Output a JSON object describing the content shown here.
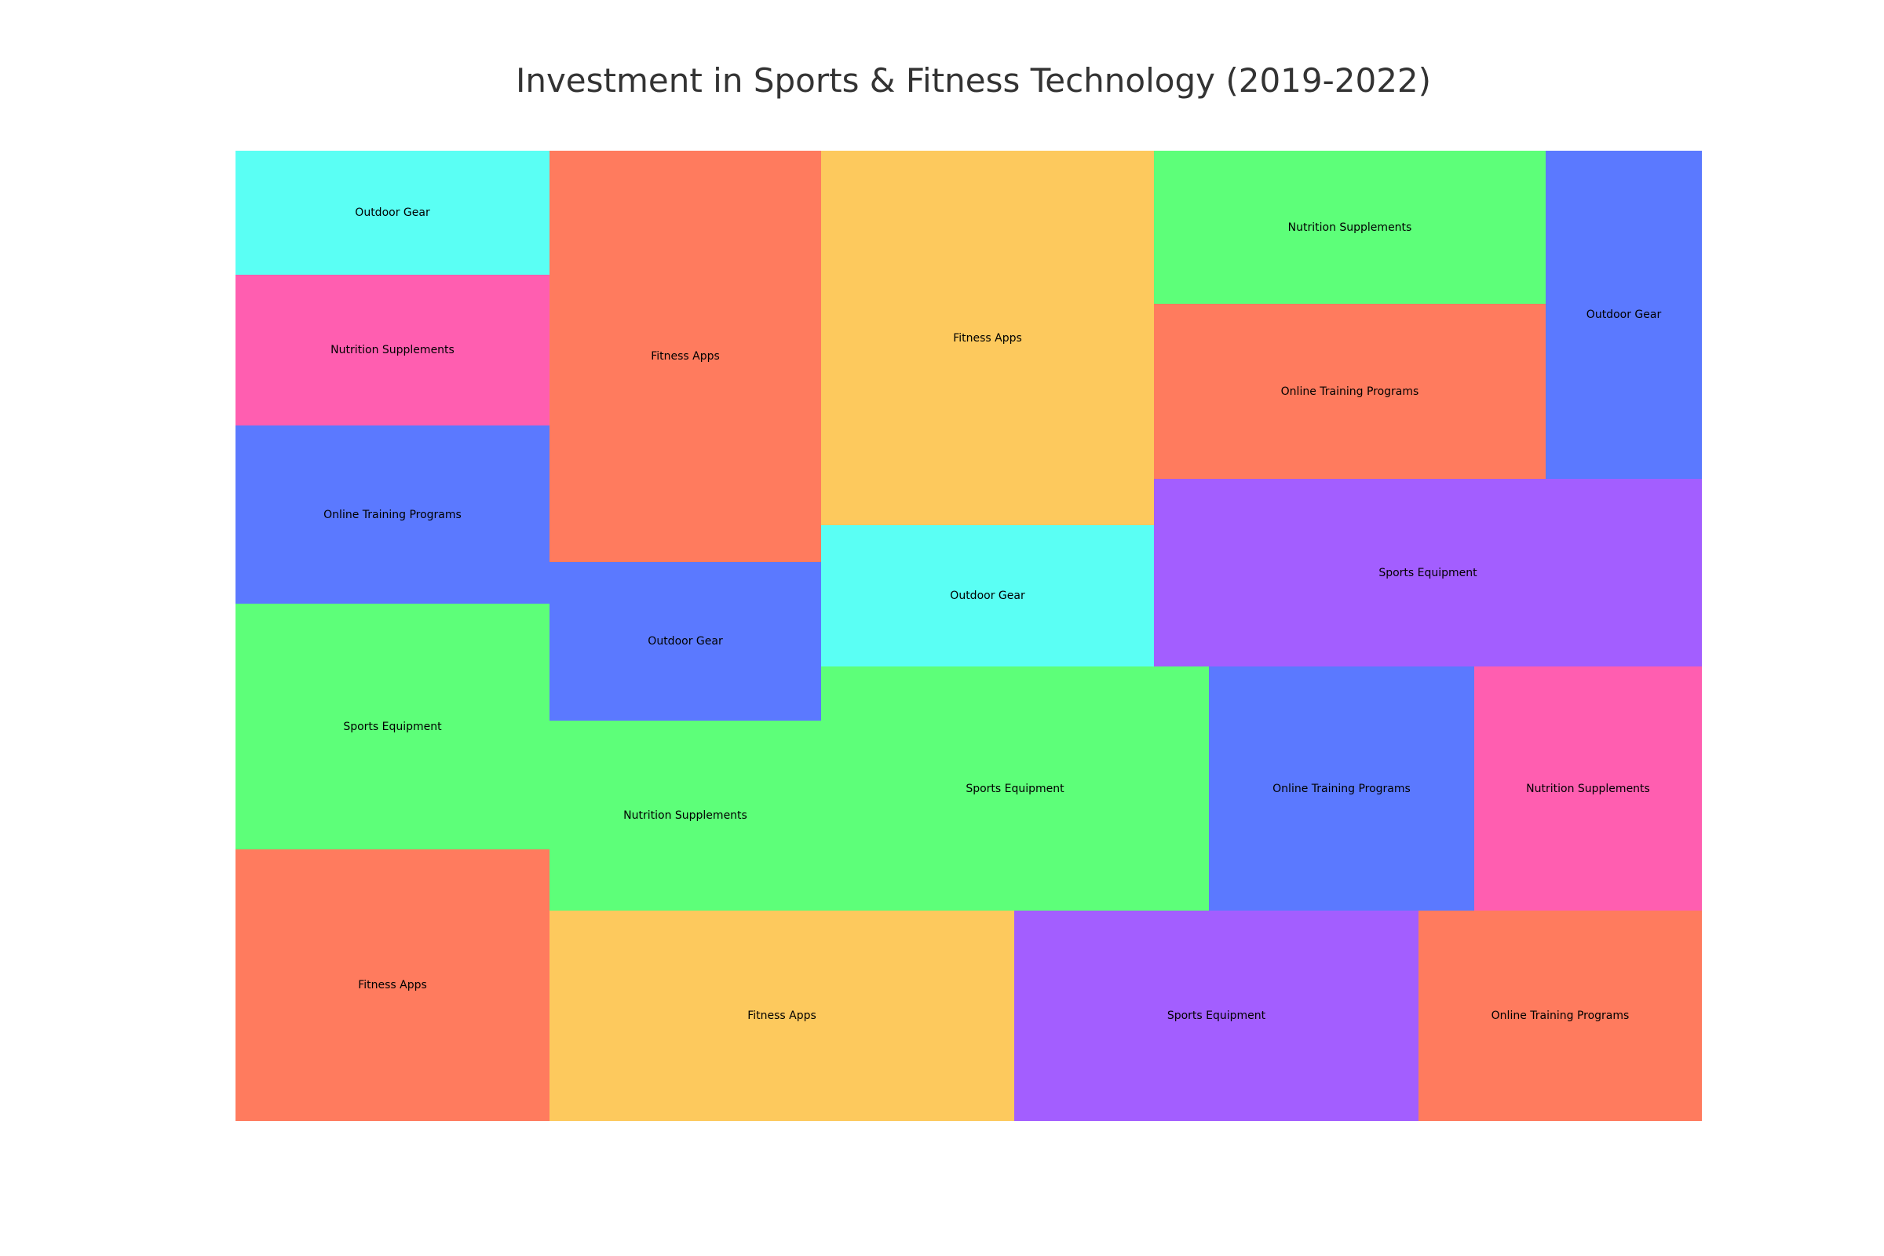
{
  "chart_data": {
    "type": "treemap",
    "title": "Investment in Sports & Fitness Technology (2019-2022)",
    "colors": {
      "orange": "#FF7B5E",
      "yellow": "#FDC95D",
      "cyan": "#5AFFF4",
      "pink": "#FF5EB0",
      "blue": "#5B79FF",
      "green": "#5DFF79",
      "purple": "#A35EFF"
    },
    "tiles": [
      {
        "label": "Outdoor Gear",
        "color": "#5AFFF4",
        "value": 26.8
      },
      {
        "label": "Nutrition Supplements",
        "color": "#FF5EB0",
        "value": 32.4
      },
      {
        "label": "Online Training Programs",
        "color": "#5B79FF",
        "value": 38.4
      },
      {
        "label": "Sports Equipment",
        "color": "#5DFF79",
        "value": 52.9
      },
      {
        "label": "Fitness Apps",
        "color": "#FF7B5E",
        "value": 58.7
      },
      {
        "label": "Fitness Apps",
        "color": "#FF7B5E",
        "value": 76.4
      },
      {
        "label": "Outdoor Gear",
        "color": "#5B79FF",
        "value": 29.6
      },
      {
        "label": "Nutrition Supplements",
        "color": "#5DFF79",
        "value": 35.2
      },
      {
        "label": "Fitness Apps",
        "color": "#FDC95D",
        "value": 85.2
      },
      {
        "label": "Outdoor Gear",
        "color": "#5AFFF4",
        "value": 32.4
      },
      {
        "label": "Sports Equipment",
        "color": "#5DFF79",
        "value": 64.4
      },
      {
        "label": "Online Training Programs",
        "color": "#5B79FF",
        "value": 44.2
      },
      {
        "label": "Nutrition Supplements",
        "color": "#FF5EB0",
        "value": 38.2
      },
      {
        "label": "Nutrition Supplements",
        "color": "#5DFF79",
        "value": 41.0
      },
      {
        "label": "Online Training Programs",
        "color": "#FF7B5E",
        "value": 46.9
      },
      {
        "label": "Outdoor Gear",
        "color": "#5B79FF",
        "value": 35.3
      },
      {
        "label": "Sports Equipment",
        "color": "#A35EFF",
        "value": 70.3
      },
      {
        "label": "Fitness Apps",
        "color": "#FDC95D",
        "value": 67.3
      },
      {
        "label": "Sports Equipment",
        "color": "#A35EFF",
        "value": 58.6
      },
      {
        "label": "Online Training Programs",
        "color": "#FF7B5E",
        "value": 41.1
      }
    ]
  }
}
